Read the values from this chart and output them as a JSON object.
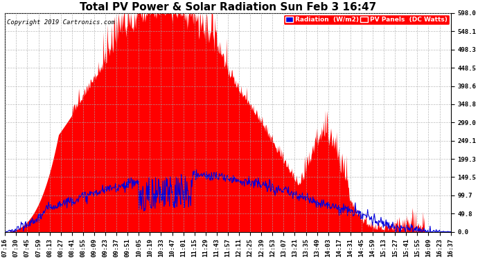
{
  "title": "Total PV Power & Solar Radiation Sun Feb 3 16:47",
  "copyright": "Copyright 2019 Cartronics.com",
  "legend_radiation": "Radiation  (W/m2)",
  "legend_pv": "PV Panels  (DC Watts)",
  "yticks": [
    0.0,
    49.8,
    99.7,
    149.5,
    199.3,
    249.1,
    299.0,
    348.8,
    398.6,
    448.5,
    498.3,
    548.1,
    598.0
  ],
  "ymax": 598.0,
  "ymin": 0.0,
  "background_color": "#ffffff",
  "plot_bg_color": "#ffffff",
  "grid_color": "#aaaaaa",
  "pv_color": "#ff0000",
  "radiation_color": "#0000dd",
  "title_fontsize": 11,
  "tick_fontsize": 6.5,
  "xtick_labels": [
    "07:16",
    "07:30",
    "07:45",
    "07:59",
    "08:13",
    "08:27",
    "08:41",
    "08:55",
    "09:09",
    "09:23",
    "09:37",
    "09:51",
    "10:05",
    "10:19",
    "10:33",
    "10:47",
    "11:01",
    "11:15",
    "11:29",
    "11:43",
    "11:57",
    "12:11",
    "12:25",
    "12:39",
    "12:53",
    "13:07",
    "13:21",
    "13:35",
    "13:49",
    "14:03",
    "14:17",
    "14:31",
    "14:45",
    "14:59",
    "15:13",
    "15:27",
    "15:41",
    "15:55",
    "16:09",
    "16:23",
    "16:37"
  ]
}
